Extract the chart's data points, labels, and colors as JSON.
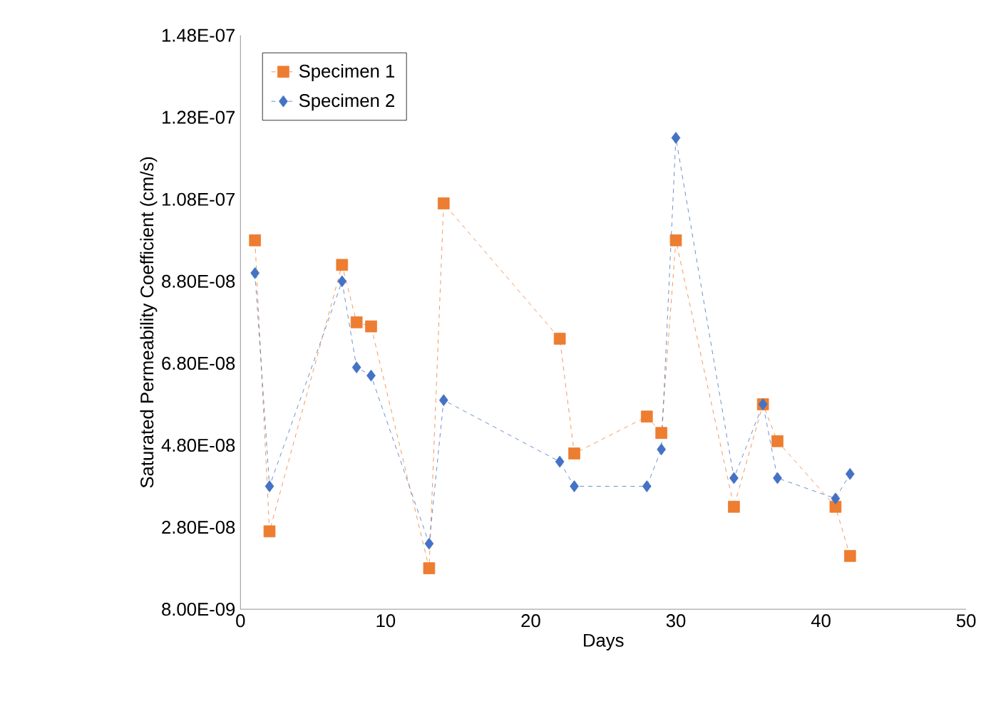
{
  "chart_data": {
    "type": "line",
    "xlabel": "Days",
    "ylabel": "Saturated Permeability  Coefficient (cm/s)",
    "xlim": [
      0,
      50
    ],
    "xticks": [
      0,
      10,
      20,
      30,
      40,
      50
    ],
    "ylim": [
      8e-09,
      1.48e-07
    ],
    "yticks": [
      {
        "value": 8e-09,
        "label": "8.00E-09"
      },
      {
        "value": 2.8e-08,
        "label": "2.80E-08"
      },
      {
        "value": 4.8e-08,
        "label": "4.80E-08"
      },
      {
        "value": 6.8e-08,
        "label": "6.80E-08"
      },
      {
        "value": 8.8e-08,
        "label": "8.80E-08"
      },
      {
        "value": 1.08e-07,
        "label": "1.08E-07"
      },
      {
        "value": 1.28e-07,
        "label": "1.28E-07"
      },
      {
        "value": 1.48e-07,
        "label": "1.48E-07"
      }
    ],
    "legend": "top left",
    "line_style": "dashed",
    "grid": false,
    "series": [
      {
        "name": "Specimen 1",
        "color": "#ed7d31",
        "marker": "square",
        "x": [
          1,
          2,
          7,
          8,
          9,
          13,
          14,
          22,
          23,
          28,
          29,
          30,
          34,
          36,
          37,
          41,
          42
        ],
        "values": [
          9.8e-08,
          2.7e-08,
          9.2e-08,
          7.8e-08,
          7.7e-08,
          1.8e-08,
          1.07e-07,
          7.4e-08,
          4.6e-08,
          5.5e-08,
          5.1e-08,
          9.8e-08,
          3.3e-08,
          5.8e-08,
          4.9e-08,
          3.3e-08,
          2.1e-08
        ]
      },
      {
        "name": "Specimen 2",
        "color": "#4472c4",
        "marker": "diamond",
        "x": [
          1,
          2,
          7,
          8,
          9,
          13,
          14,
          22,
          23,
          28,
          29,
          30,
          34,
          36,
          37,
          41,
          42
        ],
        "values": [
          9e-08,
          3.8e-08,
          8.8e-08,
          6.7e-08,
          6.5e-08,
          2.4e-08,
          5.9e-08,
          4.4e-08,
          3.8e-08,
          3.8e-08,
          4.7e-08,
          1.23e-07,
          4e-08,
          5.8e-08,
          4e-08,
          3.5e-08,
          4.1e-08
        ]
      }
    ]
  }
}
